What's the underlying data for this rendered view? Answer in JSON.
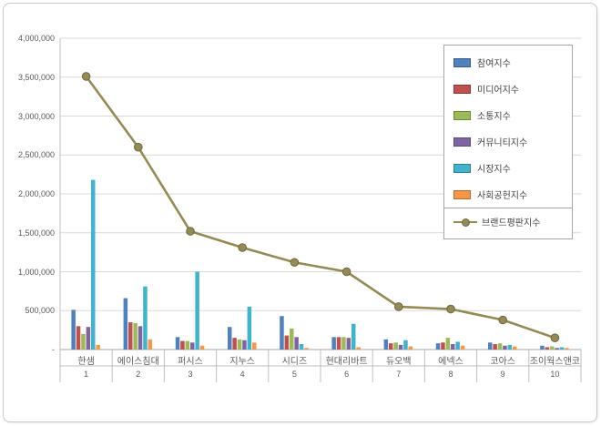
{
  "chart_data": {
    "type": "bar",
    "subtype": "grouped-bars-with-line-overlay",
    "title": "",
    "categories": [
      "한샘",
      "에이스침대",
      "퍼시스",
      "지누스",
      "시디즈",
      "현대리바트",
      "듀오백",
      "에넥스",
      "코아스",
      "조이웍스앤코"
    ],
    "category_numbers": [
      "1",
      "2",
      "3",
      "4",
      "5",
      "6",
      "7",
      "8",
      "9",
      "10"
    ],
    "bar_series": [
      {
        "name": "참여지수",
        "color": "#4F81BD",
        "values": [
          510000,
          660000,
          160000,
          290000,
          430000,
          160000,
          130000,
          80000,
          90000,
          50000
        ]
      },
      {
        "name": "미디어지수",
        "color": "#C0504D",
        "values": [
          300000,
          350000,
          110000,
          150000,
          180000,
          160000,
          80000,
          90000,
          70000,
          30000
        ]
      },
      {
        "name": "소통지수",
        "color": "#9BBB59",
        "values": [
          200000,
          340000,
          110000,
          130000,
          270000,
          160000,
          90000,
          150000,
          80000,
          40000
        ]
      },
      {
        "name": "커뮤니티지수",
        "color": "#8064A2",
        "values": [
          290000,
          300000,
          90000,
          120000,
          160000,
          150000,
          60000,
          70000,
          50000,
          20000
        ]
      },
      {
        "name": "시장지수",
        "color": "#3FB4CC",
        "values": [
          2180000,
          810000,
          1000000,
          550000,
          70000,
          330000,
          120000,
          100000,
          60000,
          30000
        ]
      },
      {
        "name": "사회공헌지수",
        "color": "#F79646",
        "values": [
          60000,
          130000,
          50000,
          90000,
          20000,
          30000,
          40000,
          50000,
          40000,
          20000
        ]
      }
    ],
    "line_series": {
      "name": "브랜드평판지수",
      "color": "#948A54",
      "values": [
        3510000,
        2600000,
        1520000,
        1310000,
        1120000,
        1000000,
        550000,
        520000,
        380000,
        150000
      ]
    },
    "y_axis": {
      "min": 0,
      "max": 4000000,
      "step": 500000,
      "labels": [
        "-",
        "500,000",
        "1,000,000",
        "1,500,000",
        "2,000,000",
        "2,500,000",
        "3,000,000",
        "3,500,000",
        "4,000,000"
      ]
    },
    "grid": true,
    "legend_position": "top-right"
  }
}
